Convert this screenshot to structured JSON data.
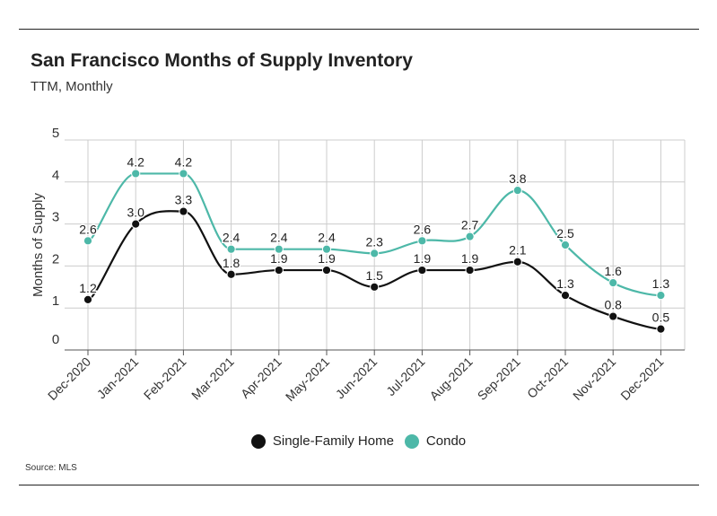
{
  "header": {
    "title": "San Francisco Months of Supply Inventory",
    "subtitle": "TTM, Monthly"
  },
  "footer": {
    "source": "Source:  MLS"
  },
  "colors": {
    "single_family": "#111111",
    "condo": "#4db8a8",
    "grid": "#cccccc",
    "axis": "#555555"
  },
  "chart_data": {
    "type": "line",
    "title": "San Francisco Months of Supply Inventory",
    "subtitle": "TTM, Monthly",
    "xlabel": "",
    "ylabel": "Months of Supply",
    "categories": [
      "Dec-2020",
      "Jan-2021",
      "Feb-2021",
      "Mar-2021",
      "Apr-2021",
      "May-2021",
      "Jun-2021",
      "Jul-2021",
      "Aug-2021",
      "Sep-2021",
      "Oct-2021",
      "Nov-2021",
      "Dec-2021"
    ],
    "series": [
      {
        "name": "Single-Family Home",
        "values": [
          1.2,
          3.0,
          3.3,
          1.8,
          1.9,
          1.9,
          1.5,
          1.9,
          1.9,
          2.1,
          1.3,
          0.8,
          0.5
        ],
        "labels": [
          "1.2",
          "3.0",
          "3.3",
          "1.8",
          "1.9",
          "1.9",
          "1.5",
          "1.9",
          "1.9",
          "2.1",
          "1.3",
          "0.8",
          "0.5"
        ]
      },
      {
        "name": "Condo",
        "values": [
          2.6,
          4.2,
          4.2,
          2.4,
          2.4,
          2.4,
          2.3,
          2.6,
          2.7,
          3.8,
          2.5,
          1.6,
          1.3
        ],
        "labels": [
          "2.6",
          "4.2",
          "4.2",
          "2.4",
          "2.4",
          "2.4",
          "2.3",
          "2.6",
          "2.7",
          "3.8",
          "2.5",
          "1.6",
          "1.3"
        ]
      }
    ],
    "yticks": [
      "0",
      "1",
      "2",
      "3",
      "4",
      "5"
    ],
    "ylim": [
      0,
      5
    ],
    "grid": true,
    "legend": "bottom-center"
  }
}
